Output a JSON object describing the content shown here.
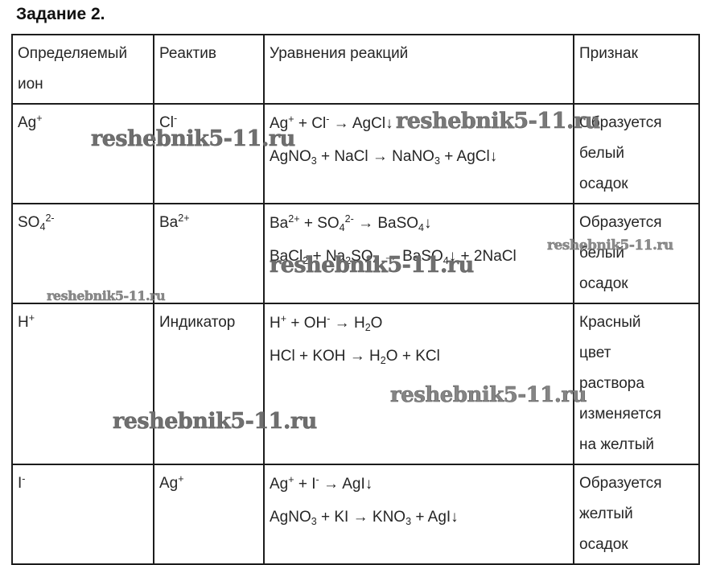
{
  "page_title": "Задание 2.",
  "watermark": {
    "text": "reshebnik5-11.ru"
  },
  "table": {
    "headers": [
      "Определяемый ион",
      "Реактив",
      "Уравнения реакций",
      "Признак"
    ],
    "rows": [
      {
        "ion": "Ag^{+}",
        "reagent": "Cl^{-}",
        "equations": [
          "Ag^{+} + Cl^{-} → AgCl↓",
          "AgNO_{3} + NaCl → NaNO_{3} + AgCl↓"
        ],
        "sign": "Образуется белый осадок"
      },
      {
        "ion": "SO_{4}^{2-}",
        "reagent": "Ba^{2+}",
        "equations": [
          "Ba^{2+} + SO_{4}^{2-} → BaSO_{4}↓",
          "BaCl_{2} + Na_{2}SO_{4} → BaSO_{4}↓ + 2NaCl"
        ],
        "sign": "Образуется белый осадок"
      },
      {
        "ion": "H^{+}",
        "reagent": "Индикатор",
        "equations": [
          "H^{+} + OH^{-} → H_{2}O",
          "HCl + KOH → H_{2}O + KCl"
        ],
        "sign": "Красный цвет раствора изменяется на желтый"
      },
      {
        "ion": "I^{-}",
        "reagent": "Ag^{+}",
        "equations": [
          "Ag^{+} + I^{-} → AgI↓",
          "AgNO_{3} + KI → KNO_{3} + AgI↓"
        ],
        "sign": "Образуется желтый осадок"
      }
    ]
  },
  "colors": {
    "text": "#262626",
    "border": "#1c1c1c",
    "watermark": "#7e7e7e",
    "background": "#ffffff"
  }
}
